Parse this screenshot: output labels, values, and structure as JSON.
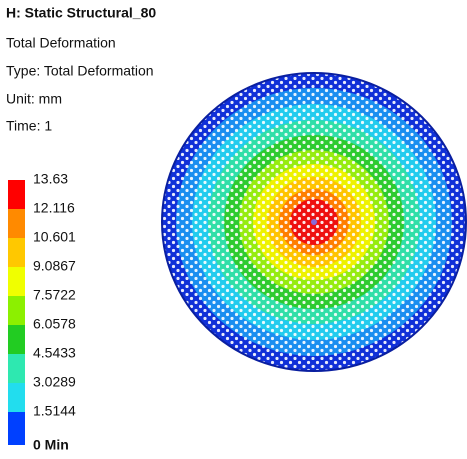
{
  "header": {
    "title": "H: Static Structural_80",
    "lines": [
      "Total Deformation",
      "Type: Total Deformation",
      "Unit: mm",
      "Time: 1"
    ]
  },
  "legend": {
    "labels": [
      "13.63",
      "12.116",
      "10.601",
      "9.0867",
      "7.5722",
      "6.0578",
      "4.5433",
      "3.0289",
      "1.5144",
      "0 Min"
    ]
  }
}
